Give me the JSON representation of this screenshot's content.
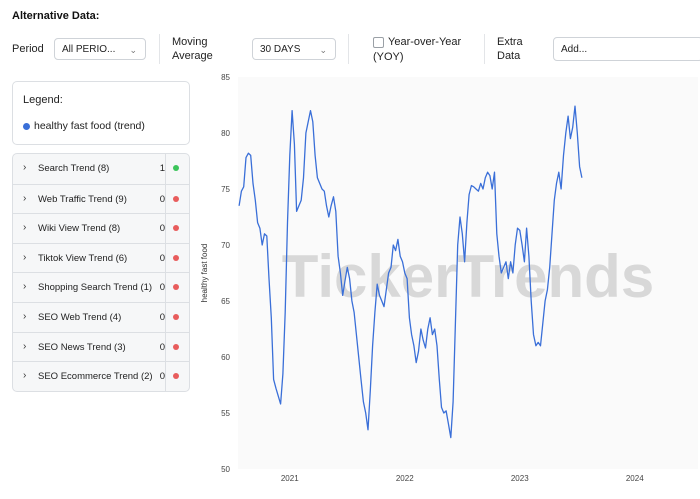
{
  "header": {
    "title": "Alternative Data:"
  },
  "toolbar": {
    "period_label": "Period",
    "period_value": "All PERIO...",
    "moving_average_label_1": "Moving",
    "moving_average_label_2": "Average",
    "moving_average_value": "30 DAYS",
    "yoy_label_1": "Year-over-Year",
    "yoy_label_2": "(YOY)",
    "extra_data_label_1": "Extra",
    "extra_data_label_2": "Data",
    "extra_data_placeholder": "Add..."
  },
  "legend": {
    "title": "Legend:",
    "items": [
      {
        "label": "healthy fast food (trend)",
        "color": "#3a6fd8"
      }
    ]
  },
  "trends": [
    {
      "name": "Search Trend (8)",
      "count": "1",
      "status_color": "#3cc45a"
    },
    {
      "name": "Web Traffic Trend (9)",
      "count": "0",
      "status_color": "#e85c5c"
    },
    {
      "name": "Wiki View Trend (8)",
      "count": "0",
      "status_color": "#e85c5c"
    },
    {
      "name": "Tiktok View Trend (6)",
      "count": "0",
      "status_color": "#e85c5c"
    },
    {
      "name": "Shopping Search Trend (1)",
      "count": "0",
      "status_color": "#e85c5c"
    },
    {
      "name": "SEO Web Trend (4)",
      "count": "0",
      "status_color": "#e85c5c"
    },
    {
      "name": "SEO News Trend (3)",
      "count": "0",
      "status_color": "#e85c5c"
    },
    {
      "name": "SEO Ecommerce Trend (2)",
      "count": "0",
      "status_color": "#e85c5c"
    }
  ],
  "watermark": "TickerTrends",
  "chart_data": {
    "type": "line",
    "ylabel": "healthy fast food",
    "ylim": [
      50,
      85
    ],
    "yticks": [
      50,
      55,
      60,
      65,
      70,
      75,
      80,
      85
    ],
    "xlim": [
      2020.55,
      2024.55
    ],
    "xticks": [
      {
        "value": 2021,
        "label": "2021"
      },
      {
        "value": 2022,
        "label": "2022"
      },
      {
        "value": 2023,
        "label": "2023"
      },
      {
        "value": 2024,
        "label": "2024"
      }
    ],
    "grid": false,
    "series": [
      {
        "name": "healthy fast food (trend)",
        "color": "#3a6fd8",
        "points": [
          [
            2020.56,
            73.5
          ],
          [
            2020.58,
            74.8
          ],
          [
            2020.6,
            75.2
          ],
          [
            2020.62,
            77.8
          ],
          [
            2020.64,
            78.2
          ],
          [
            2020.66,
            78.0
          ],
          [
            2020.68,
            75.5
          ],
          [
            2020.7,
            74.0
          ],
          [
            2020.72,
            72.0
          ],
          [
            2020.74,
            71.5
          ],
          [
            2020.76,
            70.0
          ],
          [
            2020.78,
            71.0
          ],
          [
            2020.8,
            70.8
          ],
          [
            2020.82,
            67.0
          ],
          [
            2020.84,
            63.5
          ],
          [
            2020.86,
            58.0
          ],
          [
            2020.88,
            57.2
          ],
          [
            2020.9,
            56.5
          ],
          [
            2020.92,
            55.8
          ],
          [
            2020.94,
            58.5
          ],
          [
            2020.96,
            64.0
          ],
          [
            2020.98,
            72.0
          ],
          [
            2021.0,
            78.0
          ],
          [
            2021.02,
            82.0
          ],
          [
            2021.04,
            79.0
          ],
          [
            2021.06,
            73.0
          ],
          [
            2021.08,
            73.5
          ],
          [
            2021.1,
            74.0
          ],
          [
            2021.12,
            76.0
          ],
          [
            2021.14,
            80.0
          ],
          [
            2021.16,
            81.0
          ],
          [
            2021.18,
            82.0
          ],
          [
            2021.2,
            81.0
          ],
          [
            2021.22,
            78.0
          ],
          [
            2021.24,
            76.0
          ],
          [
            2021.26,
            75.5
          ],
          [
            2021.28,
            75.0
          ],
          [
            2021.3,
            74.8
          ],
          [
            2021.32,
            73.5
          ],
          [
            2021.34,
            72.5
          ],
          [
            2021.36,
            73.5
          ],
          [
            2021.38,
            74.3
          ],
          [
            2021.4,
            73.0
          ],
          [
            2021.42,
            69.0
          ],
          [
            2021.44,
            67.5
          ],
          [
            2021.46,
            65.5
          ],
          [
            2021.48,
            66.8
          ],
          [
            2021.5,
            68.0
          ],
          [
            2021.52,
            67.0
          ],
          [
            2021.54,
            65.0
          ],
          [
            2021.56,
            64.0
          ],
          [
            2021.58,
            62.0
          ],
          [
            2021.6,
            60.0
          ],
          [
            2021.62,
            58.0
          ],
          [
            2021.64,
            56.0
          ],
          [
            2021.66,
            55.0
          ],
          [
            2021.68,
            53.5
          ],
          [
            2021.7,
            57.0
          ],
          [
            2021.72,
            61.0
          ],
          [
            2021.74,
            64.0
          ],
          [
            2021.76,
            66.5
          ],
          [
            2021.78,
            65.5
          ],
          [
            2021.8,
            65.0
          ],
          [
            2021.82,
            64.5
          ],
          [
            2021.84,
            66.0
          ],
          [
            2021.86,
            67.5
          ],
          [
            2021.88,
            68.0
          ],
          [
            2021.9,
            70.0
          ],
          [
            2021.92,
            69.5
          ],
          [
            2021.94,
            70.5
          ],
          [
            2021.96,
            69.0
          ],
          [
            2021.98,
            68.5
          ],
          [
            2022.0,
            67.5
          ],
          [
            2022.02,
            67.0
          ],
          [
            2022.04,
            63.5
          ],
          [
            2022.06,
            62.0
          ],
          [
            2022.08,
            61.0
          ],
          [
            2022.1,
            59.5
          ],
          [
            2022.12,
            60.5
          ],
          [
            2022.14,
            62.5
          ],
          [
            2022.16,
            61.5
          ],
          [
            2022.18,
            60.8
          ],
          [
            2022.2,
            62.5
          ],
          [
            2022.22,
            63.5
          ],
          [
            2022.24,
            62.0
          ],
          [
            2022.26,
            62.5
          ],
          [
            2022.28,
            61.0
          ],
          [
            2022.3,
            58.0
          ],
          [
            2022.32,
            55.5
          ],
          [
            2022.34,
            55.0
          ],
          [
            2022.36,
            55.2
          ],
          [
            2022.38,
            54.0
          ],
          [
            2022.4,
            52.8
          ],
          [
            2022.42,
            56.0
          ],
          [
            2022.44,
            63.0
          ],
          [
            2022.46,
            70.0
          ],
          [
            2022.48,
            72.5
          ],
          [
            2022.5,
            71.0
          ],
          [
            2022.52,
            68.5
          ],
          [
            2022.54,
            72.0
          ],
          [
            2022.56,
            74.5
          ],
          [
            2022.58,
            75.3
          ],
          [
            2022.6,
            75.2
          ],
          [
            2022.62,
            75.0
          ],
          [
            2022.64,
            74.8
          ],
          [
            2022.66,
            75.5
          ],
          [
            2022.68,
            75.0
          ],
          [
            2022.7,
            76.0
          ],
          [
            2022.72,
            76.5
          ],
          [
            2022.74,
            76.2
          ],
          [
            2022.76,
            75.0
          ],
          [
            2022.78,
            76.5
          ],
          [
            2022.8,
            71.0
          ],
          [
            2022.82,
            69.0
          ],
          [
            2022.84,
            67.5
          ],
          [
            2022.86,
            68.0
          ],
          [
            2022.88,
            68.5
          ],
          [
            2022.9,
            67.0
          ],
          [
            2022.92,
            68.5
          ],
          [
            2022.94,
            67.5
          ],
          [
            2022.96,
            70.0
          ],
          [
            2022.98,
            71.5
          ],
          [
            2023.0,
            71.3
          ],
          [
            2023.02,
            70.0
          ],
          [
            2023.04,
            68.5
          ],
          [
            2023.06,
            71.5
          ],
          [
            2023.08,
            69.0
          ],
          [
            2023.1,
            65.0
          ],
          [
            2023.12,
            62.0
          ],
          [
            2023.14,
            61.0
          ],
          [
            2023.16,
            61.3
          ],
          [
            2023.18,
            61.0
          ],
          [
            2023.2,
            63.0
          ],
          [
            2023.22,
            65.0
          ],
          [
            2023.24,
            66.0
          ],
          [
            2023.26,
            68.0
          ],
          [
            2023.28,
            71.0
          ],
          [
            2023.3,
            74.0
          ],
          [
            2023.32,
            75.5
          ],
          [
            2023.34,
            76.5
          ],
          [
            2023.36,
            75.0
          ],
          [
            2023.38,
            78.0
          ],
          [
            2023.4,
            80.0
          ],
          [
            2023.42,
            81.5
          ],
          [
            2023.44,
            79.5
          ],
          [
            2023.46,
            80.5
          ],
          [
            2023.48,
            82.4
          ],
          [
            2023.5,
            80.0
          ],
          [
            2023.52,
            77.0
          ],
          [
            2023.54,
            76.0
          ]
        ]
      }
    ]
  }
}
